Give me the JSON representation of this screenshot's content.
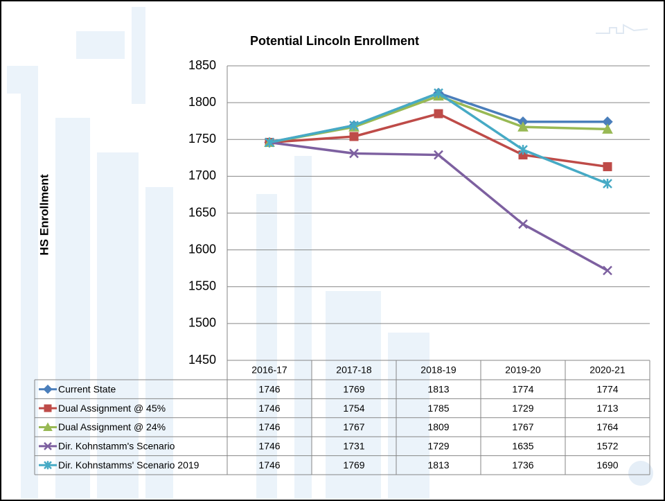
{
  "chart_data": {
    "type": "line",
    "title": "Potential Lincoln Enrollment",
    "y_label": "HS Enrollment",
    "categories": [
      "2016-17",
      "2017-18",
      "2018-19",
      "2019-20",
      "2020-21"
    ],
    "series": [
      {
        "name": "Current State",
        "color": "#4a7ebb",
        "marker": "diamond",
        "values": [
          1746,
          1769,
          1813,
          1774,
          1774
        ]
      },
      {
        "name": "Dual Assignment @ 45%",
        "color": "#be4b48",
        "marker": "square",
        "values": [
          1746,
          1754,
          1785,
          1729,
          1713
        ]
      },
      {
        "name": "Dual Assignment @ 24%",
        "color": "#98b954",
        "marker": "triangle",
        "values": [
          1746,
          1767,
          1809,
          1767,
          1764
        ]
      },
      {
        "name": "Dir. Kohnstamm's Scenario",
        "color": "#7d60a0",
        "marker": "x",
        "values": [
          1746,
          1731,
          1729,
          1635,
          1572
        ]
      },
      {
        "name": "Dir. Kohnstamms' Scenario 2019",
        "color": "#46aac5",
        "marker": "star",
        "values": [
          1746,
          1769,
          1813,
          1736,
          1690
        ]
      }
    ],
    "ylim": [
      1450,
      1850
    ],
    "yticks": [
      1450,
      1500,
      1550,
      1600,
      1650,
      1700,
      1750,
      1800,
      1850
    ],
    "grid": true,
    "data_table": true
  }
}
